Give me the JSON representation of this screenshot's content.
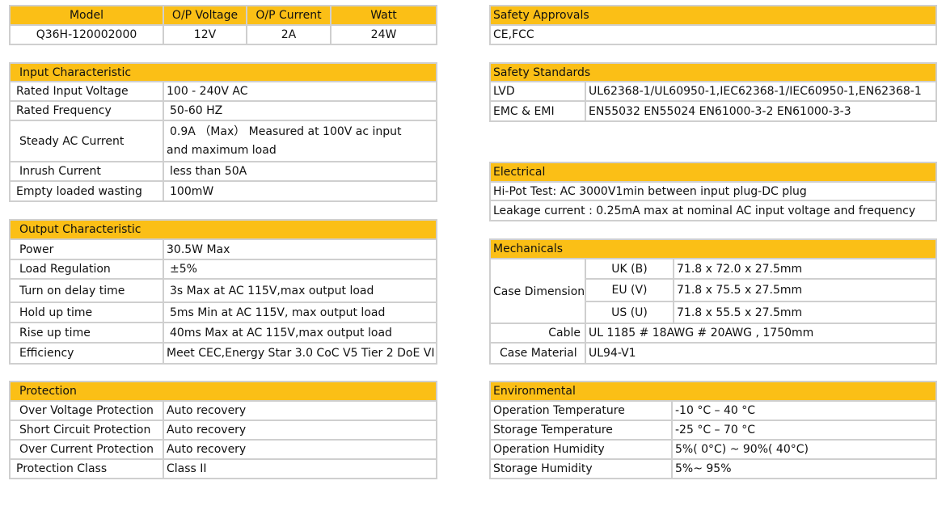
{
  "model_table": {
    "headers": [
      "Model",
      "O/P Voltage",
      "O/P Current",
      "Watt"
    ],
    "values": [
      "Q36H-120002000",
      "12V",
      "2A",
      "24W"
    ]
  },
  "input": {
    "title": "Input Characteristic",
    "rows": [
      {
        "label": "Rated Input Voltage",
        "value": "100 - 240V AC"
      },
      {
        "label": "Rated Frequency",
        "value": "50-60 HZ"
      },
      {
        "label": "Steady AC Current",
        "value": "0.9A （Max） Measured at 100V ac input and maximum load"
      },
      {
        "label": "Inrush Current",
        "value": "less than 50A"
      },
      {
        "label": "Empty loaded wasting",
        "value": "100mW"
      }
    ]
  },
  "output": {
    "title": "Output Characteristic",
    "rows": [
      {
        "label": "Power",
        "value": "30.5W Max"
      },
      {
        "label": "Load Regulation",
        "value": "±5%"
      },
      {
        "label": "Turn on delay time",
        "value": "3s Max at AC 115V,max output load"
      },
      {
        "label": "Hold up time",
        "value": "5ms Min at AC 115V, max output load"
      },
      {
        "label": "Rise up time",
        "value": "40ms Max at AC 115V,max output load"
      },
      {
        "label": "Efficiency",
        "value": "Meet CEC,Energy Star 3.0 CoC V5 Tier 2 DoE VI"
      }
    ]
  },
  "protection": {
    "title": "Protection",
    "rows": [
      {
        "label": "Over Voltage Protection",
        "value": "Auto recovery"
      },
      {
        "label": "Short Circuit Protection",
        "value": "Auto recovery"
      },
      {
        "label": "Over Current Protection",
        "value": "Auto recovery"
      },
      {
        "label": "Protection Class",
        "value": "Class II"
      }
    ]
  },
  "approvals": {
    "title": "Safety Approvals",
    "value": "CE,FCC"
  },
  "standards": {
    "title": "Safety Standards",
    "rows": [
      {
        "label": "LVD",
        "value": "UL62368-1/UL60950-1,IEC62368-1/IEC60950-1,EN62368-1"
      },
      {
        "label": "EMC & EMI",
        "value": "EN55032 EN55024 EN61000-3-2 EN61000-3-3"
      }
    ]
  },
  "electrical": {
    "title": "Electrical",
    "rows": [
      "Hi-Pot Test: AC 3000V1min between input plug-DC plug",
      "Leakage current : 0.25mA max at nominal AC input voltage and frequency"
    ]
  },
  "mechanicals": {
    "title": "Mechanicals",
    "case_dimension_label": "Case Dimension",
    "dimensions": [
      {
        "region": "UK (B)",
        "value": "71.8 x 72.0 x 27.5mm"
      },
      {
        "region": "EU (V)",
        "value": "71.8 x 75.5 x 27.5mm"
      },
      {
        "region": "US (U)",
        "value": "71.8 x 55.5 x 27.5mm"
      }
    ],
    "cable_label": "Cable",
    "cable_value": "UL 1185 # 18AWG # 20AWG , 1750mm",
    "case_material_label": "Case Material",
    "case_material_value": "UL94-V1"
  },
  "environmental": {
    "title": "Environmental",
    "rows": [
      {
        "label": "Operation Temperature",
        "value": "-10 °C – 40 °C"
      },
      {
        "label": "Storage Temperature",
        "value": "-25 °C – 70 °C"
      },
      {
        "label": "Operation Humidity",
        "value": "5%( 0°C) ~ 90%( 40°C)"
      },
      {
        "label": "Storage Humidity",
        "value": "5%~ 95%"
      }
    ]
  },
  "colors": {
    "header_fill": "#fbbf16",
    "border": "#cfcfcf"
  }
}
